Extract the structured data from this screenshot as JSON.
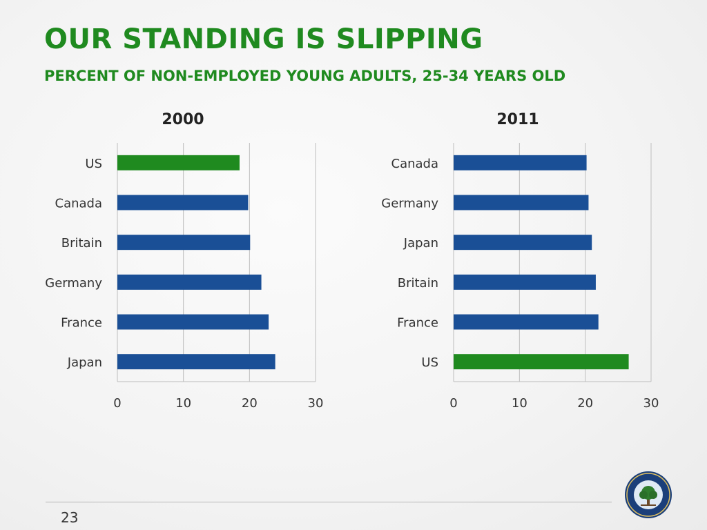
{
  "slide": {
    "title": "OUR STANDING IS SLIPPING",
    "subtitle": "PERCENT OF NON-EMPLOYED YOUNG ADULTS, 25-34 YEARS OLD",
    "page_number": "23",
    "logo": {
      "icon": "department-of-education-seal-icon",
      "text": "DEPARTMENT OF EDUCATION · UNITED STATES OF AMERICA"
    }
  },
  "colors": {
    "accent": "#1f8a1f",
    "bar_default": "#1a4f96",
    "bar_highlight": "#1f8a1f",
    "grid": "#bdbdbd"
  },
  "chart_data": [
    {
      "type": "bar",
      "orientation": "horizontal",
      "title": "2000",
      "categories": [
        "US",
        "Canada",
        "Britain",
        "Germany",
        "France",
        "Japan"
      ],
      "values": [
        18.5,
        19.8,
        20.1,
        21.8,
        22.9,
        23.9
      ],
      "highlight": "US",
      "xlim": [
        0,
        30
      ],
      "xticks": [
        "0",
        "10",
        "20",
        "30"
      ],
      "grid": true
    },
    {
      "type": "bar",
      "orientation": "horizontal",
      "title": "2011",
      "categories": [
        "Canada",
        "Germany",
        "Japan",
        "Britain",
        "France",
        "US"
      ],
      "values": [
        20.2,
        20.5,
        21.0,
        21.6,
        22.0,
        26.6
      ],
      "highlight": "US",
      "xlim": [
        0,
        30
      ],
      "xticks": [
        "0",
        "10",
        "20",
        "30"
      ],
      "grid": true
    }
  ]
}
